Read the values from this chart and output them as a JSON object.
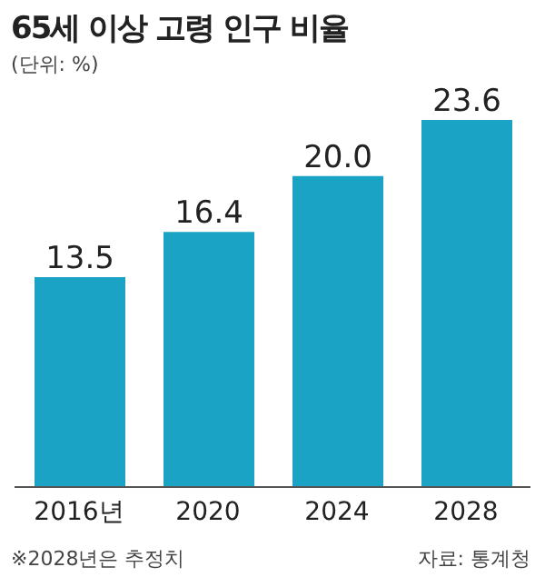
{
  "chart_data": {
    "type": "bar",
    "title": "65세 이상 고령 인구 비율",
    "subtitle": "(단위: %)",
    "categories": [
      "2016년",
      "2020",
      "2024",
      "2028"
    ],
    "values": [
      13.5,
      16.4,
      20.0,
      23.6
    ],
    "value_labels": [
      "13.5",
      "16.4",
      "20.0",
      "23.6"
    ],
    "color": "#1ba3c6",
    "grid": false,
    "legend": false,
    "annotations": [
      "※2028년은 추정치",
      "자료: 통계청"
    ]
  }
}
